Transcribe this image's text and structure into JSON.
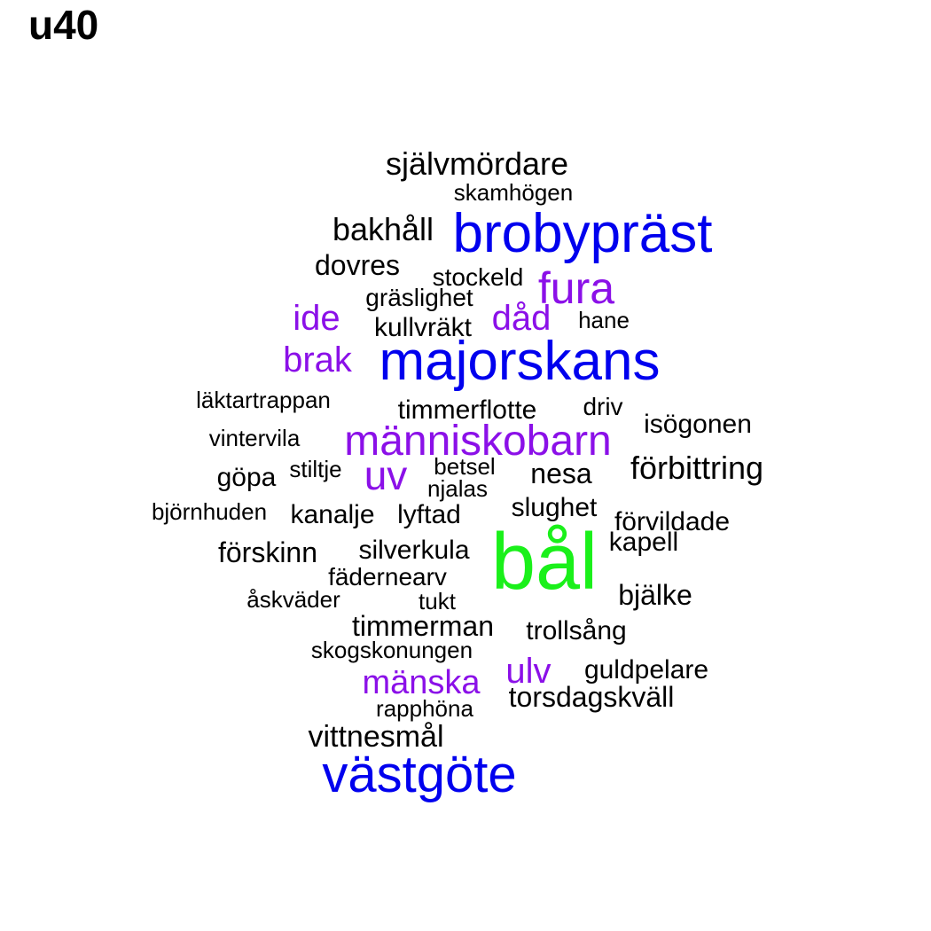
{
  "title": "u40",
  "colors": {
    "black": "#000000",
    "blue": "#0000ee",
    "purple": "#8b10e8",
    "green": "#1af01a"
  },
  "words": [
    {
      "text": "självmördare",
      "color": "black",
      "tier": 3
    },
    {
      "text": "skamhögen",
      "color": "black",
      "tier": 1
    },
    {
      "text": "bakhåll",
      "color": "black",
      "tier": 3
    },
    {
      "text": "brobypräst",
      "color": "blue",
      "tier": 7
    },
    {
      "text": "dovres",
      "color": "black",
      "tier": 3
    },
    {
      "text": "stockeld",
      "color": "black",
      "tier": 1
    },
    {
      "text": "fura",
      "color": "purple",
      "tier": 5
    },
    {
      "text": "gräslighet",
      "color": "black",
      "tier": 1
    },
    {
      "text": "ide",
      "color": "purple",
      "tier": 4
    },
    {
      "text": "kullvräkt",
      "color": "black",
      "tier": 2
    },
    {
      "text": "dåd",
      "color": "purple",
      "tier": 4
    },
    {
      "text": "hane",
      "color": "black",
      "tier": 1
    },
    {
      "text": "brak",
      "color": "purple",
      "tier": 4
    },
    {
      "text": "majorskans",
      "color": "blue",
      "tier": 7
    },
    {
      "text": "läktartrappan",
      "color": "black",
      "tier": 1
    },
    {
      "text": "timmerflotte",
      "color": "black",
      "tier": 2
    },
    {
      "text": "driv",
      "color": "black",
      "tier": 1
    },
    {
      "text": "isögonen",
      "color": "black",
      "tier": 1
    },
    {
      "text": "vintervila",
      "color": "black",
      "tier": 1
    },
    {
      "text": "människobarn",
      "color": "purple",
      "tier": 5
    },
    {
      "text": "göpa",
      "color": "black",
      "tier": 2
    },
    {
      "text": "stiltje",
      "color": "black",
      "tier": 1
    },
    {
      "text": "uv",
      "color": "purple",
      "tier": 5
    },
    {
      "text": "betsel",
      "color": "black",
      "tier": 1
    },
    {
      "text": "njalas",
      "color": "black",
      "tier": 1
    },
    {
      "text": "nesa",
      "color": "black",
      "tier": 3
    },
    {
      "text": "förbittring",
      "color": "black",
      "tier": 3
    },
    {
      "text": "björnhuden",
      "color": "black",
      "tier": 1
    },
    {
      "text": "kanalje",
      "color": "black",
      "tier": 2
    },
    {
      "text": "lyftad",
      "color": "black",
      "tier": 2
    },
    {
      "text": "slughet",
      "color": "black",
      "tier": 2
    },
    {
      "text": "förvildade",
      "color": "black",
      "tier": 2
    },
    {
      "text": "kapell",
      "color": "black",
      "tier": 2
    },
    {
      "text": "förskinn",
      "color": "black",
      "tier": 2
    },
    {
      "text": "silverkula",
      "color": "black",
      "tier": 2
    },
    {
      "text": "bål",
      "color": "green",
      "tier": 8
    },
    {
      "text": "fädernearv",
      "color": "black",
      "tier": 2
    },
    {
      "text": "åskväder",
      "color": "black",
      "tier": 1
    },
    {
      "text": "tukt",
      "color": "black",
      "tier": 1
    },
    {
      "text": "bjälke",
      "color": "black",
      "tier": 3
    },
    {
      "text": "timmerman",
      "color": "black",
      "tier": 2
    },
    {
      "text": "trollsång",
      "color": "black",
      "tier": 2
    },
    {
      "text": "skogskonungen",
      "color": "black",
      "tier": 1
    },
    {
      "text": "ulv",
      "color": "purple",
      "tier": 4
    },
    {
      "text": "guldpelare",
      "color": "black",
      "tier": 2
    },
    {
      "text": "mänska",
      "color": "purple",
      "tier": 4
    },
    {
      "text": "torsdagskväll",
      "color": "black",
      "tier": 2
    },
    {
      "text": "rapphöna",
      "color": "black",
      "tier": 1
    },
    {
      "text": "vittnesmål",
      "color": "black",
      "tier": 3
    },
    {
      "text": "västgöte",
      "color": "blue",
      "tier": 7
    }
  ]
}
